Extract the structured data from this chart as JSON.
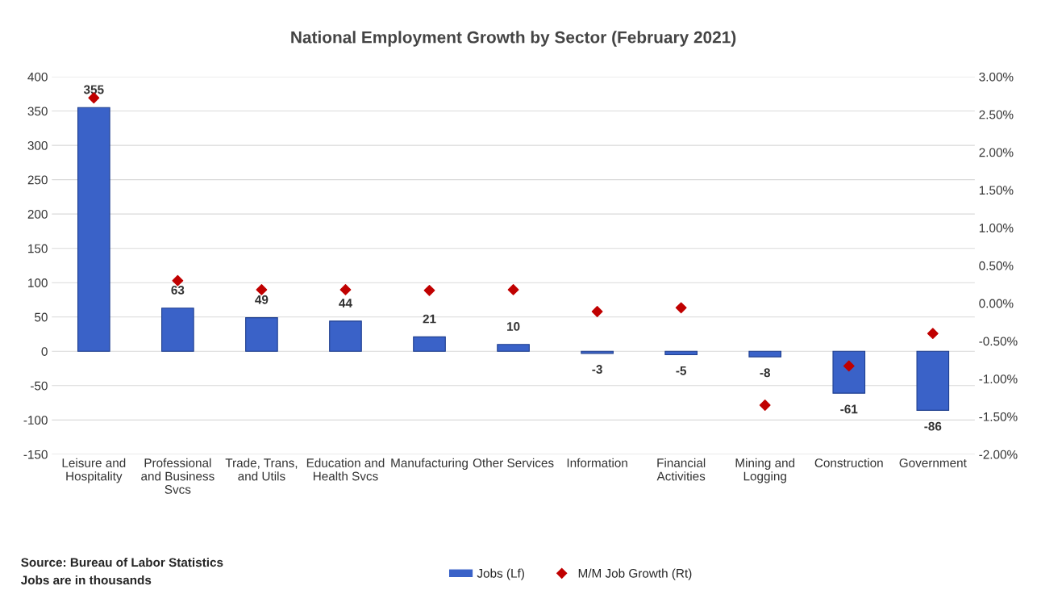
{
  "chart_data": {
    "type": "bar",
    "title": "National Employment Growth by Sector (February 2021)",
    "categories": [
      "Leisure and\nHospitality",
      "Professional\nand Business\nSvcs",
      "Trade, Trans,\nand Utils",
      "Education and\nHealth Svcs",
      "Manufacturing",
      "Other Services",
      "Information",
      "Financial\nActivities",
      "Mining and\nLogging",
      "Construction",
      "Government"
    ],
    "series": [
      {
        "name": "Jobs (Lf)",
        "color": "#3a62c8",
        "values": [
          355,
          63,
          49,
          44,
          21,
          10,
          -3,
          -5,
          -8,
          -61,
          -86
        ],
        "data_labels": true
      },
      {
        "name": "M/M Job Growth (Rt)",
        "type": "scatter",
        "axis": "y2",
        "color": "#c00000",
        "marker": "diamond",
        "values": [
          2.72,
          0.3,
          0.18,
          0.18,
          0.17,
          0.18,
          -0.11,
          -0.06,
          -1.35,
          -0.83,
          -0.4
        ]
      }
    ],
    "ylim": [
      -150,
      400
    ],
    "yticks": [
      -150,
      -100,
      -50,
      0,
      50,
      100,
      150,
      200,
      250,
      300,
      350,
      400
    ],
    "y2lim": [
      -2,
      3
    ],
    "y2ticks": [
      {
        "value": -2,
        "label": "-2.00%"
      },
      {
        "value": -1.5,
        "label": "-1.50%"
      },
      {
        "value": -1,
        "label": "-1.00%"
      },
      {
        "value": -0.5,
        "label": "-0.50%"
      },
      {
        "value": 0,
        "label": "0.00%"
      },
      {
        "value": 0.5,
        "label": "0.50%"
      },
      {
        "value": 1,
        "label": "1.00%"
      },
      {
        "value": 1.5,
        "label": "1.50%"
      },
      {
        "value": 2,
        "label": "2.00%"
      },
      {
        "value": 2.5,
        "label": "2.50%"
      },
      {
        "value": 3,
        "label": "3.00%"
      }
    ],
    "grid": "y",
    "legend": "bottom",
    "annotations": [
      "Source: Bureau of Labor Statistics",
      "Jobs are in thousands"
    ]
  }
}
